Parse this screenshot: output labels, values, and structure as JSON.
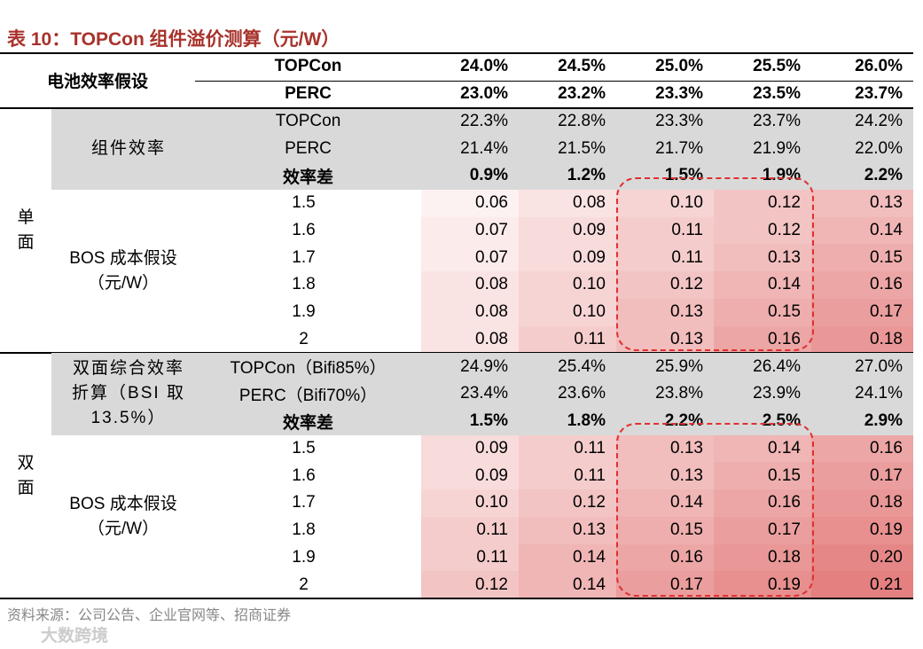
{
  "title": "表 10：TOPCon 组件溢价测算（元/W）",
  "header": {
    "label": "电池效率假设",
    "rows": [
      {
        "name": "TOPCon",
        "values": [
          "24.0%",
          "24.5%",
          "25.0%",
          "25.5%",
          "26.0%"
        ]
      },
      {
        "name": "PERC",
        "values": [
          "23.0%",
          "23.2%",
          "23.3%",
          "23.5%",
          "23.7%"
        ]
      }
    ]
  },
  "sections": [
    {
      "side": "单面",
      "efficiency_label": "组件效率",
      "efficiency_rows": [
        {
          "name": "TOPCon",
          "values": [
            "22.3%",
            "22.8%",
            "23.3%",
            "23.7%",
            "24.2%"
          ]
        },
        {
          "name": "PERC",
          "values": [
            "21.4%",
            "21.5%",
            "21.7%",
            "21.9%",
            "22.0%"
          ]
        },
        {
          "name": "效率差",
          "values": [
            "0.9%",
            "1.2%",
            "1.5%",
            "1.9%",
            "2.2%"
          ]
        }
      ],
      "bos_label": "BOS 成本假设（元/W）",
      "bos_rows": [
        {
          "cost": "1.5",
          "values": [
            "0.06",
            "0.08",
            "0.10",
            "0.12",
            "0.13"
          ]
        },
        {
          "cost": "1.6",
          "values": [
            "0.07",
            "0.09",
            "0.11",
            "0.12",
            "0.14"
          ]
        },
        {
          "cost": "1.7",
          "values": [
            "0.07",
            "0.09",
            "0.11",
            "0.13",
            "0.15"
          ]
        },
        {
          "cost": "1.8",
          "values": [
            "0.08",
            "0.10",
            "0.12",
            "0.14",
            "0.16"
          ]
        },
        {
          "cost": "1.9",
          "values": [
            "0.08",
            "0.10",
            "0.13",
            "0.15",
            "0.17"
          ]
        },
        {
          "cost": "2",
          "values": [
            "0.08",
            "0.11",
            "0.13",
            "0.16",
            "0.18"
          ]
        }
      ]
    },
    {
      "side": "双面",
      "efficiency_label": "双面综合效率折算（BSI 取13.5%）",
      "efficiency_rows": [
        {
          "name": "TOPCon（Bifi85%）",
          "values": [
            "24.9%",
            "25.4%",
            "25.9%",
            "26.4%",
            "27.0%"
          ]
        },
        {
          "name": "PERC（Bifi70%）",
          "values": [
            "23.4%",
            "23.6%",
            "23.8%",
            "23.9%",
            "24.1%"
          ]
        },
        {
          "name": "效率差",
          "values": [
            "1.5%",
            "1.8%",
            "2.2%",
            "2.5%",
            "2.9%"
          ]
        }
      ],
      "bos_label": "BOS 成本假设（元/W）",
      "bos_rows": [
        {
          "cost": "1.5",
          "values": [
            "0.09",
            "0.11",
            "0.13",
            "0.14",
            "0.16"
          ]
        },
        {
          "cost": "1.6",
          "values": [
            "0.09",
            "0.11",
            "0.13",
            "0.15",
            "0.17"
          ]
        },
        {
          "cost": "1.7",
          "values": [
            "0.10",
            "0.12",
            "0.14",
            "0.16",
            "0.18"
          ]
        },
        {
          "cost": "1.8",
          "values": [
            "0.11",
            "0.13",
            "0.15",
            "0.17",
            "0.19"
          ]
        },
        {
          "cost": "1.9",
          "values": [
            "0.11",
            "0.14",
            "0.16",
            "0.18",
            "0.20"
          ]
        },
        {
          "cost": "2",
          "values": [
            "0.12",
            "0.14",
            "0.17",
            "0.19",
            "0.21"
          ]
        }
      ]
    }
  ],
  "source": "资料来源：公司公告、企业官网等、招商证券",
  "watermark": "大数跨境"
}
